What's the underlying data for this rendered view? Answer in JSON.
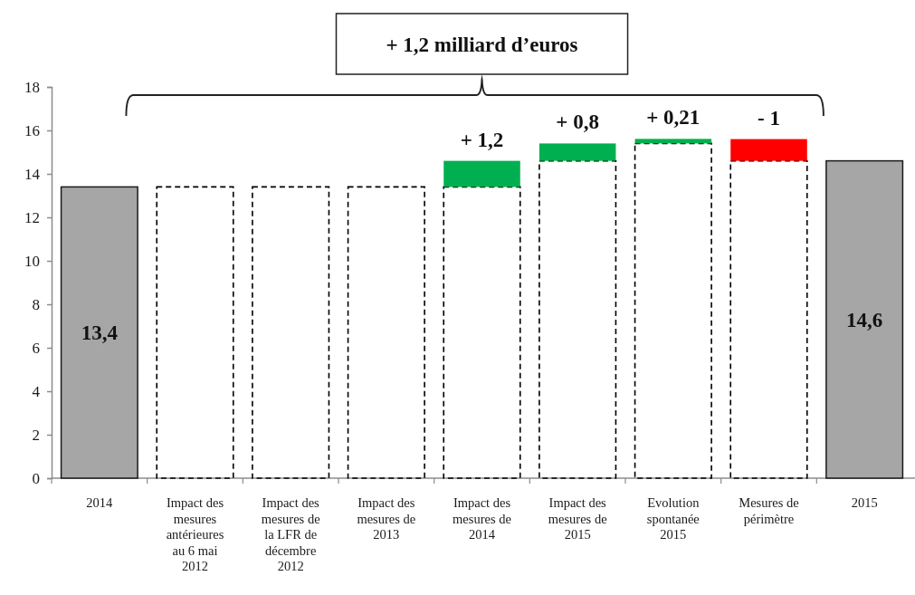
{
  "chart_data": {
    "type": "bar",
    "categories": [
      "2014",
      "Impact des mesures antérieures au 6 mai 2012",
      "Impact des mesures de la LFR de décembre 2012",
      "Impact des mesures de 2013",
      "Impact des mesures de 2014",
      "Impact des mesures de 2015",
      "Evolution spontanée 2015",
      "Mesures de périmètre",
      "2015"
    ],
    "series": [
      {
        "color": "#000000",
        "line_style": "dashed",
        "values": [
          null,
          13.4,
          13.4,
          13.4,
          13.4,
          14.6,
          15.4,
          14.6,
          null
        ]
      },
      {
        "values": [
          13.4,
          null,
          null,
          null,
          1.2,
          0.8,
          0.21,
          -1,
          14.6
        ],
        "base": [
          0,
          null,
          null,
          null,
          13.4,
          14.6,
          15.4,
          15.6,
          0
        ],
        "colors": [
          "#a6a6a6",
          null,
          null,
          null,
          "#00b050",
          "#00b050",
          "#00b050",
          "#ff0000",
          "#a6a6a6"
        ],
        "value_labels": [
          "13,4",
          null,
          null,
          null,
          "+ 1,2",
          "+ 0,8",
          "+ 0,21",
          "- 1",
          "14,6"
        ]
      }
    ],
    "ylim": [
      0,
      18
    ],
    "yticks": [
      0,
      2,
      4,
      6,
      8,
      10,
      12,
      14,
      16,
      18
    ],
    "annotations": [
      "+ 1,2 milliard d’euros"
    ]
  }
}
